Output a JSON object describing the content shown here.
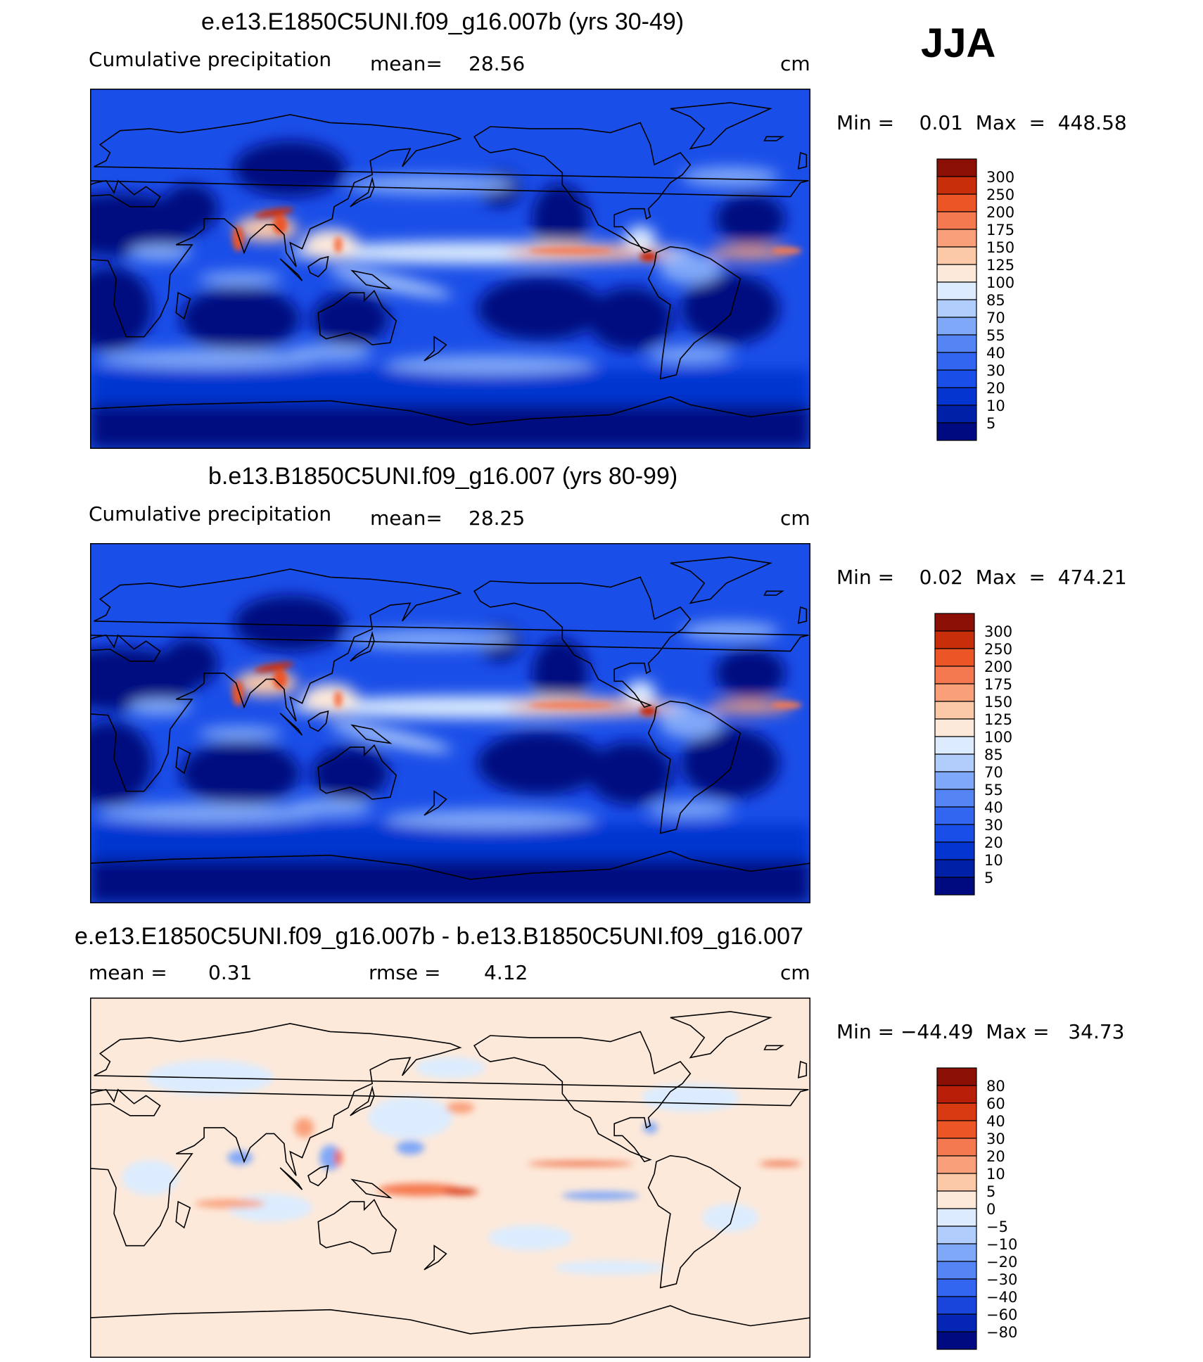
{
  "season": "JJA",
  "panels": [
    {
      "title": "e.e13.E1850C5UNI.f09_g16.007b (yrs 30-49)",
      "left_label": "Cumulative precipitation",
      "center_label": "mean=",
      "center_value": "28.56",
      "units": "cm",
      "minmax": "Min =    0.01  Max  =  448.58"
    },
    {
      "title": "b.e13.B1850C5UNI.f09_g16.007 (yrs 80-99)",
      "left_label": "Cumulative precipitation",
      "center_label": "mean=",
      "center_value": "28.25",
      "units": "cm",
      "minmax": "Min =    0.02  Max  =  474.21"
    },
    {
      "title": "e.e13.E1850C5UNI.f09_g16.007b - b.e13.B1850C5UNI.f09_g16.007",
      "left_label": "mean =",
      "left_value": "0.31",
      "center_label": "rmse =",
      "center_value": "4.12",
      "units": "cm",
      "minmax": "Min = −44.49  Max =   34.73"
    }
  ],
  "chart_data": [
    {
      "type": "heatmap",
      "subtype": "global filled-contour map",
      "title": "e.e13.E1850C5UNI.f09_g16.007b (yrs 30-49)",
      "variable": "Cumulative precipitation",
      "units": "cm",
      "mean": 28.56,
      "min": 0.01,
      "max": 448.58,
      "colorbar_levels": [
        "5",
        "10",
        "20",
        "30",
        "40",
        "55",
        "70",
        "85",
        "100",
        "125",
        "150",
        "175",
        "200",
        "250",
        "300"
      ],
      "colorbar_colors": [
        "#000a80",
        "#0020a8",
        "#0535d0",
        "#1a4ee8",
        "#3366f0",
        "#5585f5",
        "#80a8f8",
        "#b0cdfb",
        "#dcecfe",
        "#fde9da",
        "#fcc9a8",
        "#f9a07a",
        "#f57950",
        "#ec5525",
        "#c82e0a",
        "#8c0f05"
      ]
    },
    {
      "type": "heatmap",
      "subtype": "global filled-contour map",
      "title": "b.e13.B1850C5UNI.f09_g16.007 (yrs 80-99)",
      "variable": "Cumulative precipitation",
      "units": "cm",
      "mean": 28.25,
      "min": 0.02,
      "max": 474.21,
      "colorbar_levels": [
        "5",
        "10",
        "20",
        "30",
        "40",
        "55",
        "70",
        "85",
        "100",
        "125",
        "150",
        "175",
        "200",
        "250",
        "300"
      ],
      "colorbar_colors": [
        "#000a80",
        "#0020a8",
        "#0535d0",
        "#1a4ee8",
        "#3366f0",
        "#5585f5",
        "#80a8f8",
        "#b0cdfb",
        "#dcecfe",
        "#fde9da",
        "#fcc9a8",
        "#f9a07a",
        "#f57950",
        "#ec5525",
        "#c82e0a",
        "#8c0f05"
      ]
    },
    {
      "type": "heatmap",
      "subtype": "global filled-contour difference map",
      "title": "e.e13.E1850C5UNI.f09_g16.007b - b.e13.B1850C5UNI.f09_g16.007",
      "units": "cm",
      "mean": 0.31,
      "rmse": 4.12,
      "min": -44.49,
      "max": 34.73,
      "colorbar_levels": [
        "−80",
        "−60",
        "−40",
        "−30",
        "−20",
        "−10",
        "−5",
        "0",
        "5",
        "10",
        "20",
        "30",
        "40",
        "60",
        "80"
      ],
      "colorbar_colors": [
        "#000a80",
        "#0525b5",
        "#1a45dd",
        "#3366f0",
        "#5585f5",
        "#80a8f8",
        "#b0cdfb",
        "#dcecfe",
        "#fde9da",
        "#fcc9a8",
        "#f9a07a",
        "#f57950",
        "#ec5525",
        "#d83a12",
        "#b81e08",
        "#8c0f05"
      ]
    }
  ]
}
